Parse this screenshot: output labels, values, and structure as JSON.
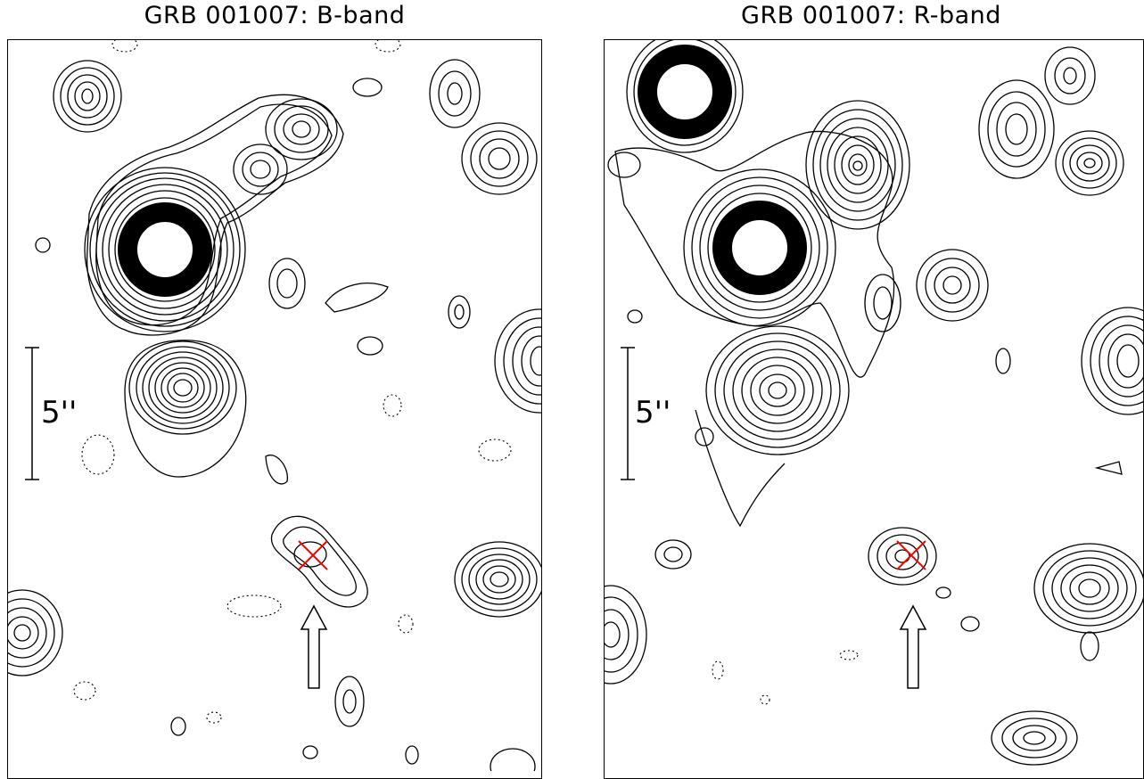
{
  "chart_data": [
    {
      "type": "contour",
      "title": "GRB 001007: B-band",
      "scale_bar_label": "5''",
      "marker": "red cross at afterglow position",
      "arrow": "points to host galaxy"
    },
    {
      "type": "contour",
      "title": "GRB 001007: R-band",
      "scale_bar_label": "5''",
      "marker": "red cross at afterglow position",
      "arrow": "points to host galaxy"
    }
  ],
  "colors": {
    "contour": "#000000",
    "cross": "#ff0000",
    "background": "#ffffff"
  }
}
